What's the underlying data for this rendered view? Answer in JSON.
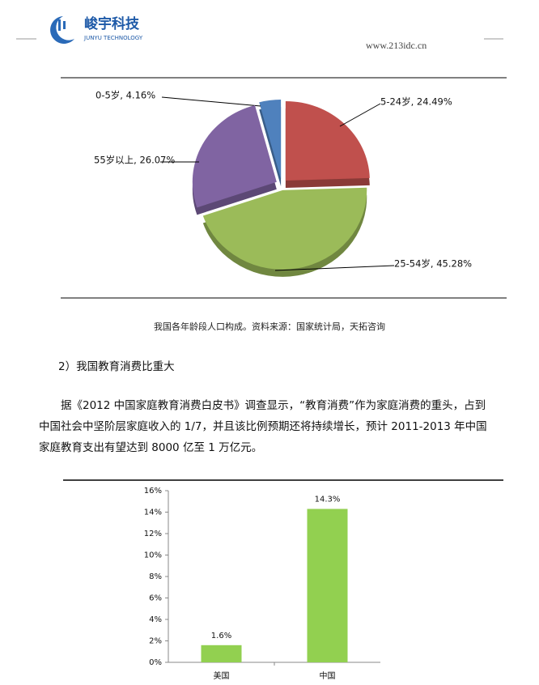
{
  "header": {
    "company": "峻宇科技",
    "company_en": "JUNYU TECHNOLOGY",
    "url": "www.213idc.cn"
  },
  "chart_data": [
    {
      "type": "pie",
      "values": [
        4.16,
        24.49,
        45.28,
        26.07
      ],
      "value_labels": [
        "0-5岁, 4.16%",
        "5-24岁, 24.49%",
        "25-54岁, 45.28%",
        "55岁以上, 26.07%"
      ],
      "colors": [
        "#4f81bd",
        "#c0504d",
        "#9bbb59",
        "#8064a2"
      ],
      "caption": "我国各年龄段人口构成。资料来源：国家统计局，天拓咨询"
    },
    {
      "type": "bar",
      "categories": [
        "美国",
        "中国"
      ],
      "values": [
        1.6,
        14.3
      ],
      "value_labels": [
        "1.6%",
        "14.3%"
      ],
      "color": "#92d050",
      "ylim": [
        0,
        16
      ],
      "yticks": [
        {
          "value": 0,
          "label": "0%"
        },
        {
          "value": 2,
          "label": "2%"
        },
        {
          "value": 4,
          "label": "4%"
        },
        {
          "value": 6,
          "label": "6%"
        },
        {
          "value": 8,
          "label": "8%"
        },
        {
          "value": 10,
          "label": "10%"
        },
        {
          "value": 12,
          "label": "12%"
        },
        {
          "value": 14,
          "label": "14%"
        },
        {
          "value": 16,
          "label": "16%"
        }
      ]
    }
  ],
  "section": {
    "heading": "2）我国教育消费比重大",
    "paragraph": "据《2012 中国家庭教育消费白皮书》调查显示，“教育消费”作为家庭消费的重头，占到中国社会中坚阶层家庭收入的 1/7，并且该比例预期还将持续增长，预计 2011-2013 年中国家庭教育支出有望达到 8000 亿至 1 万亿元。"
  }
}
